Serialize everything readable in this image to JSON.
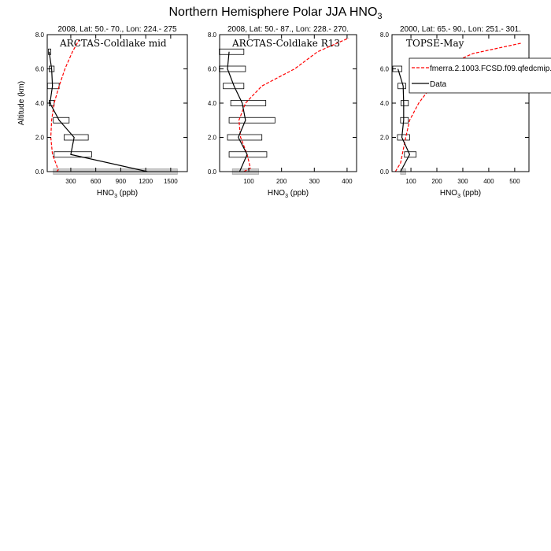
{
  "title": "Northern Hemisphere Polar JJA HNO",
  "title_sub": "3",
  "chart_data": [
    {
      "type": "line",
      "subtitle": "2008, Lat:  50.- 70., Lon: 224.- 275",
      "campaign": "ARCTAS-Coldlake mid",
      "xlabel": "HNO",
      "xlabel_sub": "3",
      "xlabel_unit": " (ppb)",
      "ylabel": "Altitude (km)",
      "xlim": [
        17,
        1700
      ],
      "ylim": [
        0,
        8
      ],
      "xticks": [
        300,
        600,
        900,
        1200,
        1500
      ],
      "yticks": [
        "0.0",
        "2.0",
        "4.0",
        "6.0",
        "8.0"
      ],
      "series": [
        {
          "name": "fmerra.2.1003.FCSD.f09.qfedcmip.",
          "color": "#ff0000",
          "style": "dashed",
          "points": [
            [
              130,
              0
            ],
            [
              150,
              0.1
            ],
            [
              80,
              1
            ],
            [
              60,
              2
            ],
            [
              70,
              3
            ],
            [
              100,
              4
            ],
            [
              160,
              5
            ],
            [
              230,
              6
            ],
            [
              320,
              7
            ],
            [
              400,
              7.7
            ]
          ]
        },
        {
          "name": "Data",
          "color": "#000000",
          "style": "solid",
          "points": [
            [
              1220,
              0
            ],
            [
              300,
              1
            ],
            [
              340,
              2
            ],
            [
              160,
              3
            ],
            [
              50,
              4
            ],
            [
              80,
              5
            ],
            [
              70,
              6
            ],
            [
              40,
              7
            ]
          ]
        }
      ],
      "ranges": [
        [
          0,
          90,
          1580
        ],
        [
          1,
          100,
          550
        ],
        [
          2,
          220,
          510
        ],
        [
          3,
          90,
          280
        ],
        [
          4,
          40,
          100
        ],
        [
          5,
          20,
          160
        ],
        [
          6,
          40,
          100
        ],
        [
          7,
          30,
          60
        ]
      ]
    },
    {
      "type": "line",
      "subtitle": "2008, Lat:  50.- 87., Lon: 228.- 270.",
      "campaign": "ARCTAS-Coldlake R13",
      "xlabel": "HNO",
      "xlabel_sub": "3",
      "xlabel_unit": " (ppb)",
      "xlim": [
        11,
        429
      ],
      "ylim": [
        0,
        8
      ],
      "xticks": [
        100,
        200,
        300,
        400
      ],
      "yticks": [
        "0.0",
        "2.0",
        "4.0",
        "6.0",
        "8.0"
      ],
      "series": [
        {
          "name": "fmerra.2.1003.FCSD.f09.qfedcmip.",
          "color": "#ff0000",
          "style": "dashed",
          "points": [
            [
              85,
              0
            ],
            [
              105,
              0.2
            ],
            [
              95,
              1
            ],
            [
              75,
              2
            ],
            [
              70,
              3
            ],
            [
              90,
              4
            ],
            [
              140,
              5
            ],
            [
              240,
              6
            ],
            [
              310,
              7
            ],
            [
              405,
              7.8
            ]
          ]
        },
        {
          "name": "Data",
          "color": "#000000",
          "style": "solid",
          "points": [
            [
              72,
              0
            ],
            [
              95,
              1
            ],
            [
              68,
              2
            ],
            [
              90,
              3
            ],
            [
              80,
              4
            ],
            [
              55,
              5
            ],
            [
              35,
              6
            ],
            [
              40,
              7
            ]
          ]
        }
      ],
      "ranges": [
        [
          0,
          50,
          130
        ],
        [
          1,
          40,
          155
        ],
        [
          2,
          35,
          140
        ],
        [
          3,
          40,
          180
        ],
        [
          4,
          45,
          152
        ],
        [
          5,
          22,
          85
        ],
        [
          6,
          10,
          90
        ],
        [
          7,
          10,
          85
        ]
      ]
    },
    {
      "type": "line",
      "subtitle": "2000, Lat: 65.- 90., Lon: 251.- 301.",
      "campaign": "TOPSE-May",
      "xlabel": "HNO",
      "xlabel_sub": "3",
      "xlabel_unit": " (ppb)",
      "xlim": [
        27,
        555
      ],
      "ylim": [
        0,
        8
      ],
      "xticks": [
        100,
        200,
        300,
        400,
        500
      ],
      "yticks": [
        "0.0",
        "2.0",
        "4.0",
        "6.0",
        "8.0"
      ],
      "series": [
        {
          "name": "fmerra.2.1003.FCSD.f09.qfedcmip.",
          "color": "#ff0000",
          "style": "dashed",
          "points": [
            [
              40,
              0
            ],
            [
              60,
              0.5
            ],
            [
              80,
              2
            ],
            [
              95,
              3
            ],
            [
              130,
              4
            ],
            [
              180,
              5
            ],
            [
              280,
              6.5
            ],
            [
              340,
              6.9
            ],
            [
              525,
              7.5
            ]
          ]
        },
        {
          "name": "Data",
          "color": "#000000",
          "style": "solid",
          "points": [
            [
              60,
              0
            ],
            [
              95,
              1
            ],
            [
              65,
              2
            ],
            [
              72,
              3
            ],
            [
              72,
              4
            ],
            [
              70,
              5
            ],
            [
              50,
              6
            ]
          ]
        }
      ],
      "ranges": [
        [
          0,
          60,
          80
        ],
        [
          1,
          75,
          120
        ],
        [
          2,
          48,
          95
        ],
        [
          3,
          60,
          90
        ],
        [
          4,
          62,
          90
        ],
        [
          5,
          50,
          80
        ],
        [
          6,
          30,
          65
        ]
      ],
      "legend": {
        "placement": "top-right",
        "entries": [
          "fmerra.2.1003.FCSD.f09.qfedcmip.",
          "Data"
        ]
      }
    }
  ]
}
